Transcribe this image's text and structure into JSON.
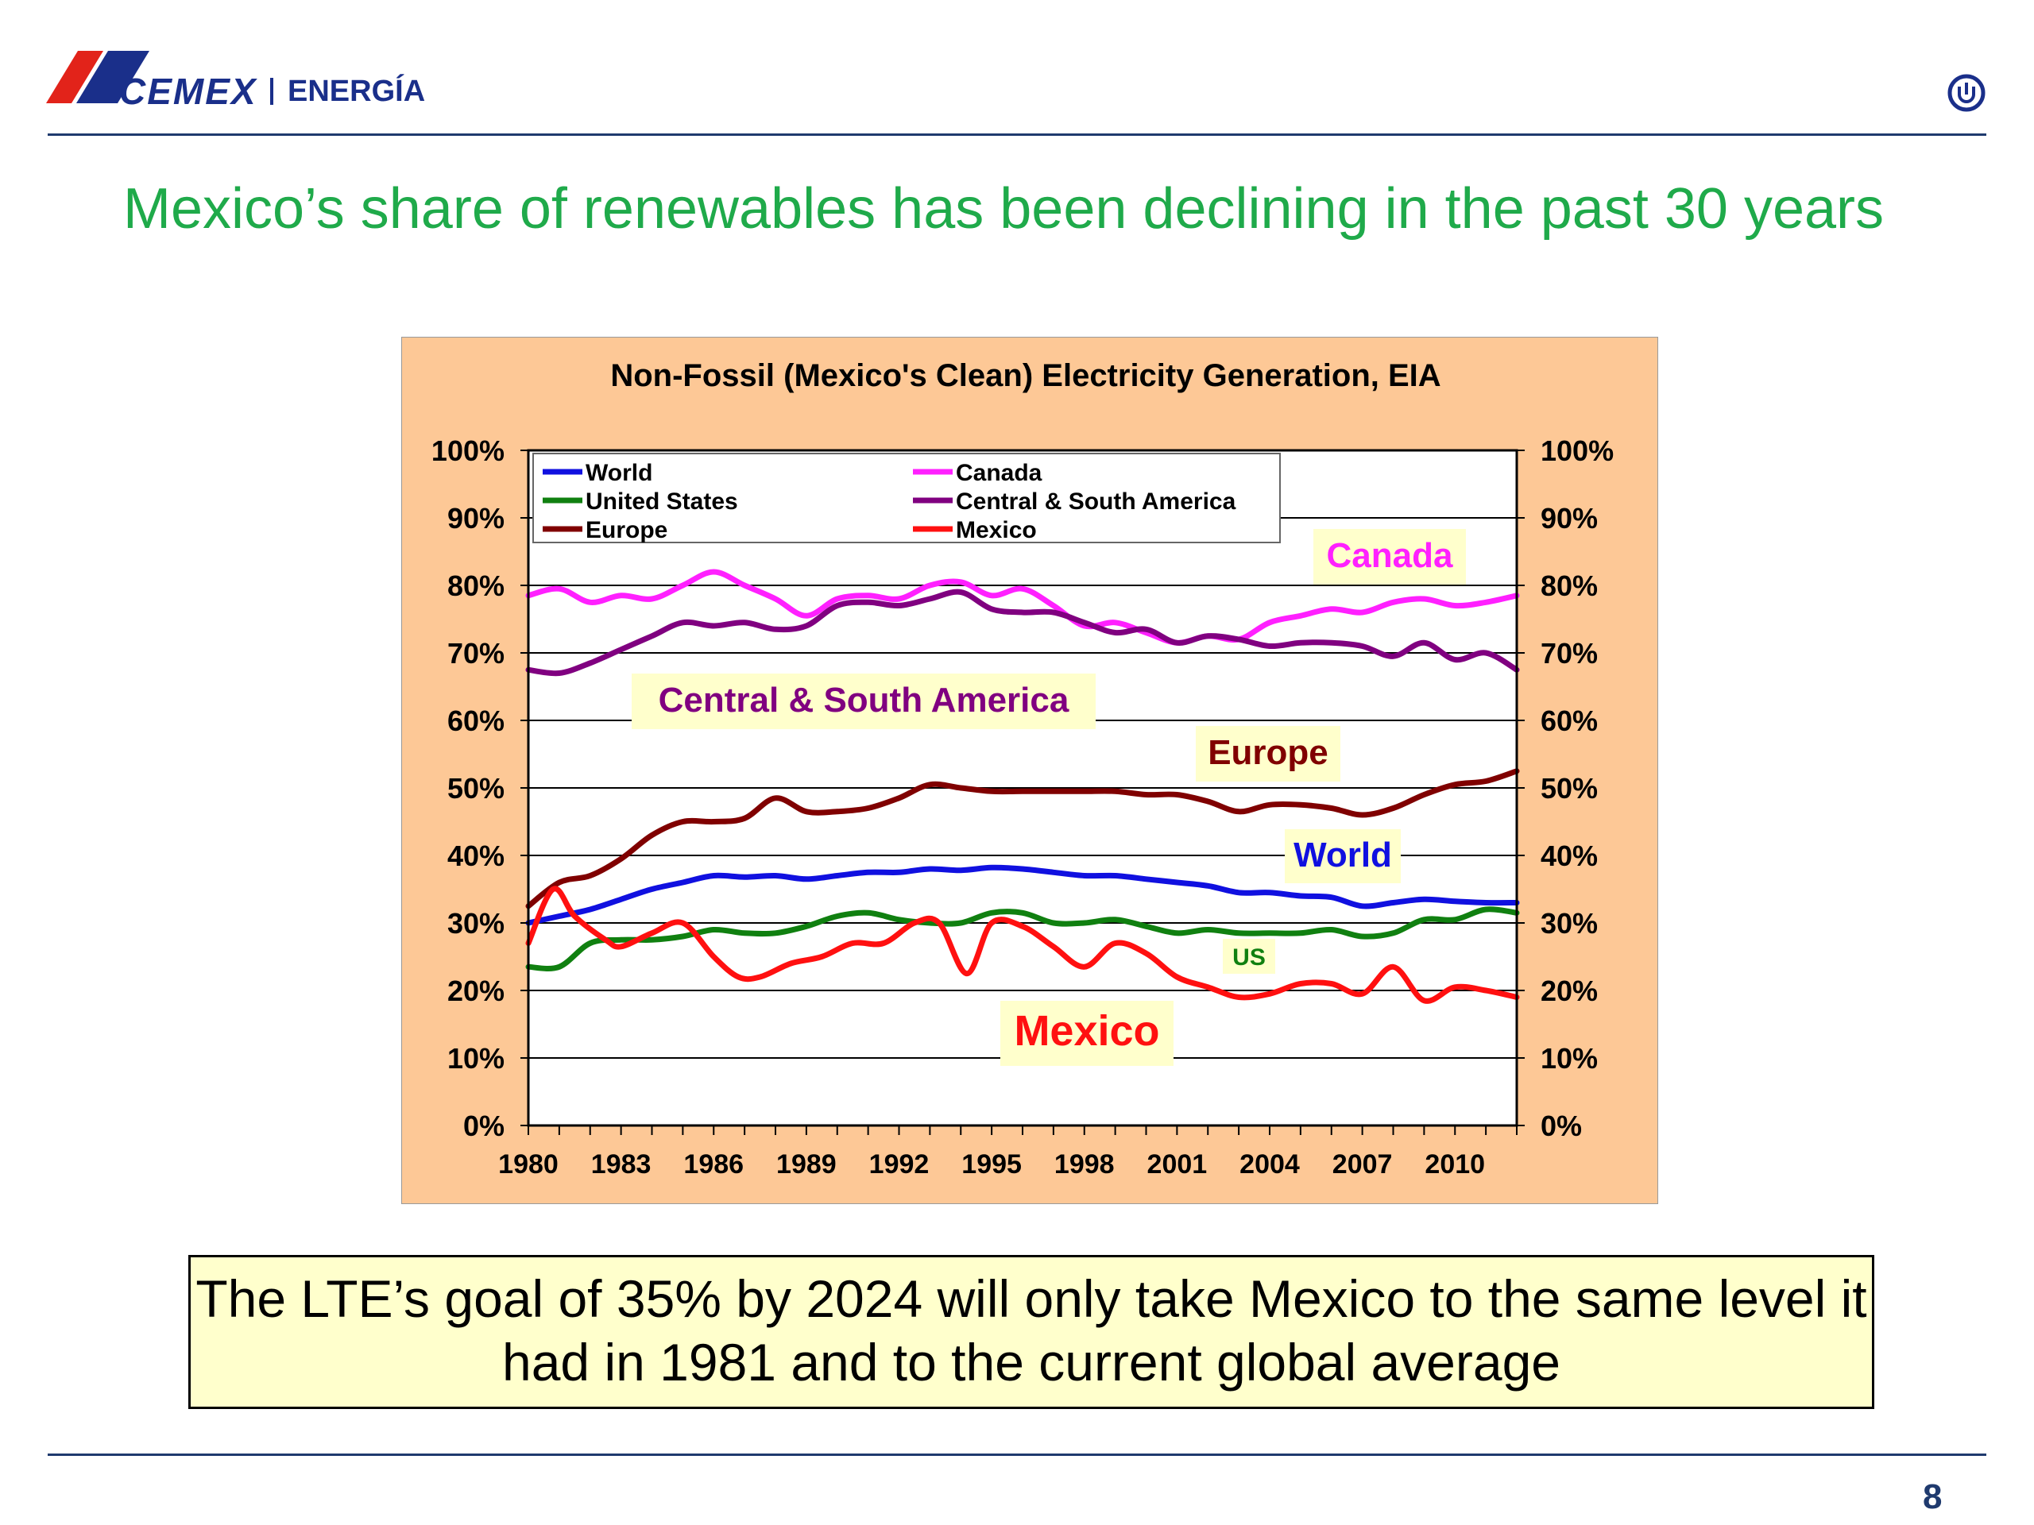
{
  "header": {
    "brand": "CEMEX",
    "division": "ENERGÍA",
    "brand_colors": {
      "blue": "#1a2f8a",
      "red": "#e2231a"
    },
    "power_icon": "power-icon"
  },
  "slide": {
    "title": "Mexico’s share of renewables has been declining in the past 30 years",
    "title_color": "#1faa4a",
    "callout": "The LTE’s goal of 35% by 2024 will only take Mexico to the same level it had in 1981 and to the current global average",
    "page_number": "8"
  },
  "chart_data": {
    "type": "line",
    "title": "Non-Fossil (Mexico's Clean) Electricity Generation, EIA",
    "background": "#fdc896",
    "plot_background": "#ffffff",
    "xlim": [
      1980,
      2012
    ],
    "ylim": [
      0,
      100
    ],
    "x_ticks": [
      "1980",
      "1983",
      "1986",
      "1989",
      "1992",
      "1995",
      "1998",
      "2001",
      "2004",
      "2007",
      "2010"
    ],
    "y_ticks": [
      "0%",
      "10%",
      "20%",
      "30%",
      "40%",
      "50%",
      "60%",
      "70%",
      "80%",
      "90%",
      "100%"
    ],
    "grid": "horizontal",
    "legend_position": "top-left",
    "legend_entries": [
      "World",
      "Canada",
      "United States",
      "Central & South America",
      "Europe",
      "Mexico"
    ],
    "series": [
      {
        "name": "World",
        "color": "#1010e0",
        "x": [
          1980,
          1981,
          1982,
          1983,
          1984,
          1985,
          1986,
          1987,
          1988,
          1989,
          1990,
          1991,
          1992,
          1993,
          1994,
          1995,
          1996,
          1997,
          1998,
          1999,
          2000,
          2001,
          2002,
          2003,
          2004,
          2005,
          2006,
          2007,
          2008,
          2009,
          2010,
          2011,
          2012
        ],
        "values": [
          30,
          31,
          32,
          33.5,
          35,
          36,
          37,
          36.8,
          37,
          36.5,
          37,
          37.5,
          37.5,
          38,
          37.8,
          38.2,
          38,
          37.5,
          37,
          37,
          36.5,
          36,
          35.5,
          34.5,
          34.5,
          34,
          33.8,
          32.5,
          33,
          33.5,
          33.2,
          33,
          33
        ]
      },
      {
        "name": "United States",
        "color": "#108010",
        "x": [
          1980,
          1981,
          1982,
          1983,
          1984,
          1985,
          1986,
          1987,
          1988,
          1989,
          1990,
          1991,
          1992,
          1993,
          1994,
          1995,
          1996,
          1997,
          1998,
          1999,
          2000,
          2001,
          2002,
          2003,
          2004,
          2005,
          2006,
          2007,
          2008,
          2009,
          2010,
          2011,
          2012
        ],
        "values": [
          23.5,
          23.5,
          27,
          27.5,
          27.5,
          28,
          29,
          28.5,
          28.5,
          29.5,
          31,
          31.5,
          30.5,
          30,
          30,
          31.5,
          31.5,
          30,
          30,
          30.5,
          29.5,
          28.5,
          29,
          28.5,
          28.5,
          28.5,
          29,
          28,
          28.5,
          30.5,
          30.5,
          32,
          31.5
        ]
      },
      {
        "name": "Europe",
        "color": "#800000",
        "x": [
          1980,
          1981,
          1982,
          1983,
          1984,
          1985,
          1986,
          1987,
          1988,
          1989,
          1990,
          1991,
          1992,
          1993,
          1994,
          1995,
          1996,
          1997,
          1998,
          1999,
          2000,
          2001,
          2002,
          2003,
          2004,
          2005,
          2006,
          2007,
          2008,
          2009,
          2010,
          2011,
          2012
        ],
        "values": [
          32.5,
          36,
          37,
          39.5,
          43,
          45,
          45,
          45.5,
          48.5,
          46.5,
          46.5,
          47,
          48.5,
          50.5,
          50,
          49.5,
          49.5,
          49.5,
          49.5,
          49.5,
          49,
          49,
          48,
          46.5,
          47.5,
          47.5,
          47,
          46,
          47,
          49,
          50.5,
          51,
          52.5
        ]
      },
      {
        "name": "Canada",
        "color": "#ff20ff",
        "x": [
          1980,
          1981,
          1982,
          1983,
          1984,
          1985,
          1986,
          1987,
          1988,
          1989,
          1990,
          1991,
          1992,
          1993,
          1994,
          1995,
          1996,
          1997,
          1998,
          1999,
          2000,
          2001,
          2002,
          2003,
          2004,
          2005,
          2006,
          2007,
          2008,
          2009,
          2010,
          2011,
          2012
        ],
        "values": [
          78.5,
          79.5,
          77.5,
          78.5,
          78,
          80,
          82,
          80,
          78,
          75.5,
          78,
          78.5,
          78,
          80,
          80.5,
          78.5,
          79.5,
          77,
          74,
          74.5,
          73,
          71.5,
          72.5,
          72,
          74.5,
          75.5,
          76.5,
          76,
          77.5,
          78,
          77,
          77.5,
          78.5
        ]
      },
      {
        "name": "Central & South America",
        "color": "#800080",
        "x": [
          1980,
          1981,
          1982,
          1983,
          1984,
          1985,
          1986,
          1987,
          1988,
          1989,
          1990,
          1991,
          1992,
          1993,
          1994,
          1995,
          1996,
          1997,
          1998,
          1999,
          2000,
          2001,
          2002,
          2003,
          2004,
          2005,
          2006,
          2007,
          2008,
          2009,
          2010,
          2011,
          2012
        ],
        "values": [
          67.5,
          67,
          68.5,
          70.5,
          72.5,
          74.5,
          74,
          74.5,
          73.5,
          74,
          77,
          77.5,
          77,
          78,
          79,
          76.5,
          76,
          76,
          74.5,
          73,
          73.5,
          71.5,
          72.5,
          72,
          71,
          71.5,
          71.5,
          71,
          69.5,
          71.5,
          69,
          70,
          67.5
        ]
      },
      {
        "name": "Mexico",
        "color": "#ff1010",
        "x": [
          1980,
          1980.8,
          1981.5,
          1982.5,
          1983,
          1984,
          1985,
          1986,
          1986.8,
          1987.5,
          1988.5,
          1989.5,
          1990.5,
          1991.5,
          1992.5,
          1993.3,
          1994.2,
          1995,
          1996,
          1997,
          1998,
          1999,
          2000,
          2001,
          2002,
          2003,
          2004,
          2005,
          2006,
          2007,
          2008,
          2009,
          2010,
          2011,
          2012
        ],
        "values": [
          27,
          35,
          31,
          27.5,
          26.5,
          28.5,
          30,
          25,
          22,
          22,
          24,
          25,
          27,
          27,
          30,
          30,
          22.5,
          30,
          29.5,
          26.5,
          23.5,
          27,
          25.5,
          22,
          20.5,
          19,
          19.5,
          21,
          21,
          19.5,
          23.5,
          18.5,
          20.5,
          20,
          19
        ]
      }
    ],
    "annotations": [
      {
        "text": "Canada",
        "color": "#ff20ff"
      },
      {
        "text": "Central & South America",
        "color": "#800080"
      },
      {
        "text": "Europe",
        "color": "#800000"
      },
      {
        "text": "World",
        "color": "#1010e0"
      },
      {
        "text": "US",
        "color": "#108010"
      },
      {
        "text": "Mexico",
        "color": "#ff1010"
      }
    ]
  }
}
